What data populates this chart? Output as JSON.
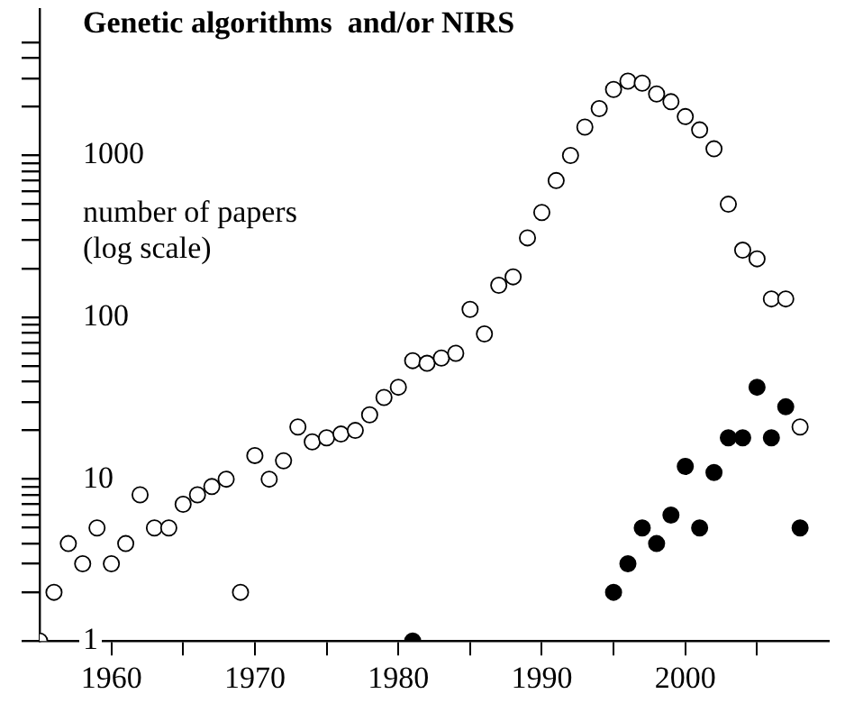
{
  "chart_data": {
    "type": "scatter",
    "title": "Genetic algorithms  and/or NIRS",
    "ylabel": "number of papers (log scale)",
    "log": "y",
    "grid": false,
    "legend": false,
    "marker": "circle",
    "xlim": [
      1955,
      2010
    ],
    "xticks": [
      {
        "value": 1960,
        "label": "1960"
      },
      {
        "value": 1965,
        "label": null
      },
      {
        "value": 1970,
        "label": "1970"
      },
      {
        "value": 1975,
        "label": null
      },
      {
        "value": 1980,
        "label": "1980"
      },
      {
        "value": 1985,
        "label": null
      },
      {
        "value": 1990,
        "label": "1990"
      },
      {
        "value": 1995,
        "label": null
      },
      {
        "value": 2000,
        "label": "2000"
      },
      {
        "value": 2005,
        "label": null
      }
    ],
    "ylim": [
      1,
      8000
    ],
    "yticks": [
      1,
      {
        "value": 2,
        "label": null
      },
      {
        "value": 3,
        "label": null
      },
      {
        "value": 4,
        "label": null
      },
      {
        "value": 5,
        "label": null
      },
      {
        "value": 6,
        "label": null
      },
      {
        "value": 7,
        "label": null
      },
      {
        "value": 8,
        "label": null
      },
      {
        "value": 9,
        "label": null
      },
      10,
      {
        "value": 20,
        "label": null
      },
      {
        "value": 30,
        "label": null
      },
      {
        "value": 40,
        "label": null
      },
      {
        "value": 50,
        "label": null
      },
      {
        "value": 60,
        "label": null
      },
      {
        "value": 70,
        "label": null
      },
      {
        "value": 80,
        "label": null
      },
      {
        "value": 90,
        "label": null
      },
      100,
      {
        "value": 200,
        "label": null
      },
      {
        "value": 300,
        "label": null
      },
      {
        "value": 400,
        "label": null
      },
      {
        "value": 500,
        "label": null
      },
      {
        "value": 600,
        "label": null
      },
      {
        "value": 700,
        "label": null
      },
      {
        "value": 800,
        "label": null
      },
      {
        "value": 900,
        "label": null
      },
      1000,
      {
        "value": 2000,
        "label": null
      },
      {
        "value": 3000,
        "label": null
      },
      {
        "value": 4000,
        "label": null
      },
      {
        "value": 5000,
        "label": null
      }
    ],
    "series": [
      {
        "color": "#ffffff",
        "x": [
          1955,
          1956,
          1957,
          1958,
          1959,
          1960,
          1961,
          1962,
          1963,
          1964,
          1965,
          1966,
          1967,
          1968,
          1969,
          1970,
          1971,
          1972,
          1973,
          1974,
          1975,
          1976,
          1977,
          1978,
          1979,
          1980,
          1981,
          1982,
          1983,
          1984,
          1985,
          1986,
          1987,
          1988,
          1989,
          1990,
          1991,
          1992,
          1993,
          1994,
          1995,
          1996,
          1997,
          1998,
          1999,
          2000,
          2001,
          2002,
          2003,
          2004,
          2005,
          2006,
          2007,
          2008
        ],
        "values": [
          1,
          2,
          4,
          3,
          5,
          3,
          4,
          8,
          5,
          5,
          7,
          8,
          9,
          10,
          2,
          14,
          10,
          13,
          21,
          17,
          18,
          19,
          20,
          25,
          32,
          37,
          54,
          52,
          56,
          60,
          112,
          79,
          158,
          178,
          310,
          445,
          700,
          1000,
          1500,
          1950,
          2560,
          2880,
          2800,
          2400,
          2150,
          1740,
          1440,
          1100,
          500,
          260,
          230,
          130,
          130,
          21
        ]
      },
      {
        "color": "#000000",
        "x": [
          1981,
          1995,
          1996,
          1997,
          1998,
          1999,
          2000,
          2001,
          2002,
          2003,
          2004,
          2005,
          2006,
          2007,
          2008
        ],
        "values": [
          1,
          2,
          3,
          5,
          4,
          6,
          12,
          5,
          11,
          18,
          18,
          37,
          18,
          28,
          5
        ]
      }
    ]
  }
}
